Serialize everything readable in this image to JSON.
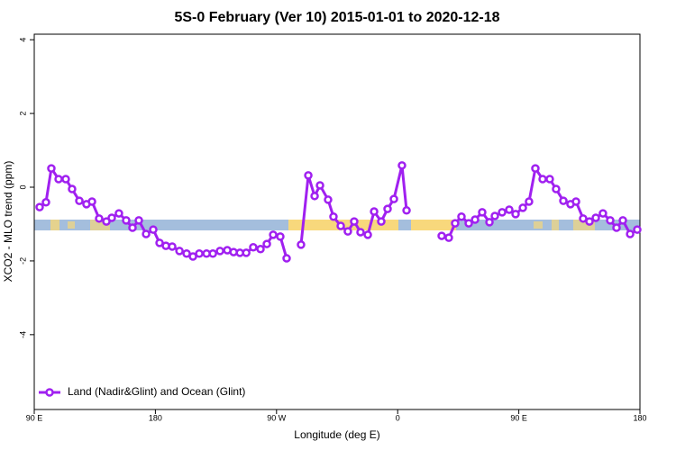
{
  "chart_data": {
    "type": "line",
    "title": "5S-0 February (Ver 10)   2015-01-01 to 2020-12-18",
    "x_label": "Longitude (deg E)",
    "y_label": "XCO2 - MLO trend (ppm)",
    "x": [
      94.0,
      98.7,
      102.7,
      108.1,
      113.4,
      118.1,
      123.5,
      128.8,
      132.9,
      138.2,
      143.6,
      147.6,
      152.9,
      158.3,
      163.0,
      167.7,
      173.1,
      178.4,
      183.1,
      187.8,
      192.5,
      197.9,
      203.2,
      207.9,
      212.6,
      218.0,
      222.7,
      228.0,
      233.4,
      238.1,
      242.8,
      247.5,
      252.7,
      258.1,
      262.8,
      267.5,
      272.8,
      277.5,
      283.0,
      288.2,
      293.6,
      298.3,
      302.3,
      308.3,
      312.3,
      317.7,
      323.0,
      327.7,
      332.4,
      337.8,
      342.5,
      347.8,
      352.5,
      357.2,
      363.2,
      366.6,
      380.0,
      392.7,
      398.0,
      402.7,
      407.4,
      412.8,
      417.5,
      422.8,
      428.2,
      432.2,
      437.6,
      442.9,
      447.6,
      453.0,
      457.6,
      462.3,
      467.7,
      473.0,
      477.7,
      483.1,
      488.4,
      492.5,
      497.8,
      502.5,
      507.2,
      512.5,
      517.9,
      522.6,
      527.3,
      532.7,
      538.0
    ],
    "series": [
      {
        "name": "Land (Nadir&Glint) and Ocean (Glint)",
        "color": "#a020f0",
        "values": [
          -0.54,
          -0.41,
          0.51,
          0.22,
          0.22,
          -0.05,
          -0.37,
          -0.46,
          -0.39,
          -0.85,
          -0.93,
          -0.83,
          -0.71,
          -0.9,
          -1.1,
          -0.9,
          -1.27,
          -1.15,
          -1.51,
          -1.59,
          -1.61,
          -1.73,
          -1.8,
          -1.88,
          -1.8,
          -1.8,
          -1.8,
          -1.73,
          -1.71,
          -1.76,
          -1.78,
          -1.78,
          -1.63,
          -1.68,
          -1.54,
          -1.29,
          -1.34,
          -1.93,
          null,
          -1.56,
          0.32,
          -0.24,
          0.05,
          -0.34,
          -0.8,
          -1.05,
          -1.2,
          -0.93,
          -1.22,
          -1.29,
          -0.66,
          -0.93,
          -0.59,
          -0.32,
          0.59,
          -0.63,
          null,
          -1.32,
          -1.37,
          -0.98,
          -0.8,
          -0.98,
          -0.88,
          -0.68,
          -0.95,
          -0.78,
          -0.68,
          -0.61,
          -0.73,
          -0.56,
          -0.39,
          0.51,
          0.22,
          0.22,
          -0.05,
          -0.37,
          -0.46,
          -0.39,
          -0.85,
          -0.93,
          -0.83,
          -0.71,
          -0.9,
          -1.1,
          -0.9,
          -1.27,
          -1.15
        ]
      }
    ],
    "xlim": [
      90,
      540
    ],
    "xticks": [
      {
        "value": 90,
        "label": "90 E"
      },
      180,
      {
        "value": 270,
        "label": "90 W"
      },
      {
        "value": 360,
        "label": "0"
      },
      {
        "value": 450,
        "label": "90 E"
      },
      {
        "value": 540,
        "label": "180"
      }
    ],
    "ylim": [
      -6.03,
      4.15
    ],
    "yticks": [
      -4,
      -2,
      0,
      2,
      4
    ],
    "legend": "bottom-left"
  }
}
